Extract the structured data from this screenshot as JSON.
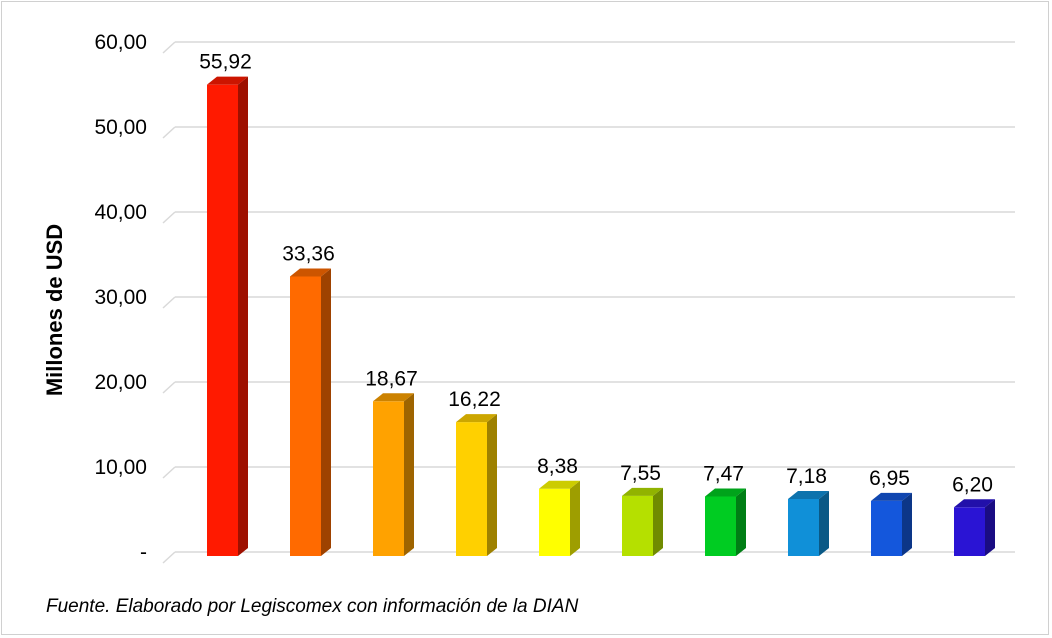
{
  "chart_data": {
    "type": "bar",
    "categories": [
      "",
      "",
      "",
      "",
      "",
      "",
      "",
      "",
      "",
      ""
    ],
    "values": [
      55.92,
      33.36,
      18.67,
      16.22,
      8.38,
      7.55,
      7.47,
      7.18,
      6.95,
      6.2
    ],
    "value_labels": [
      "55,92",
      "33,36",
      "18,67",
      "16,22",
      "8,38",
      "7,55",
      "7,47",
      "7,18",
      "6,95",
      "6,20"
    ],
    "bar_colors": [
      "#ff1a00",
      "#ff6a00",
      "#ffa200",
      "#ffd000",
      "#ffff00",
      "#b5e000",
      "#00cc22",
      "#1090d8",
      "#1457dc",
      "#2a14d4"
    ],
    "ylabel": "Millones de USD",
    "ylim": [
      0,
      60
    ],
    "yticks": [
      0,
      10,
      20,
      30,
      40,
      50,
      60
    ],
    "ytick_labels": [
      "-",
      "10,00",
      "20,00",
      "30,00",
      "40,00",
      "50,00",
      "60,00"
    ],
    "grid": true,
    "legend": "none",
    "style": "3d-column"
  },
  "source_note": "Fuente. Elaborado por Legiscomex con información de la DIAN"
}
